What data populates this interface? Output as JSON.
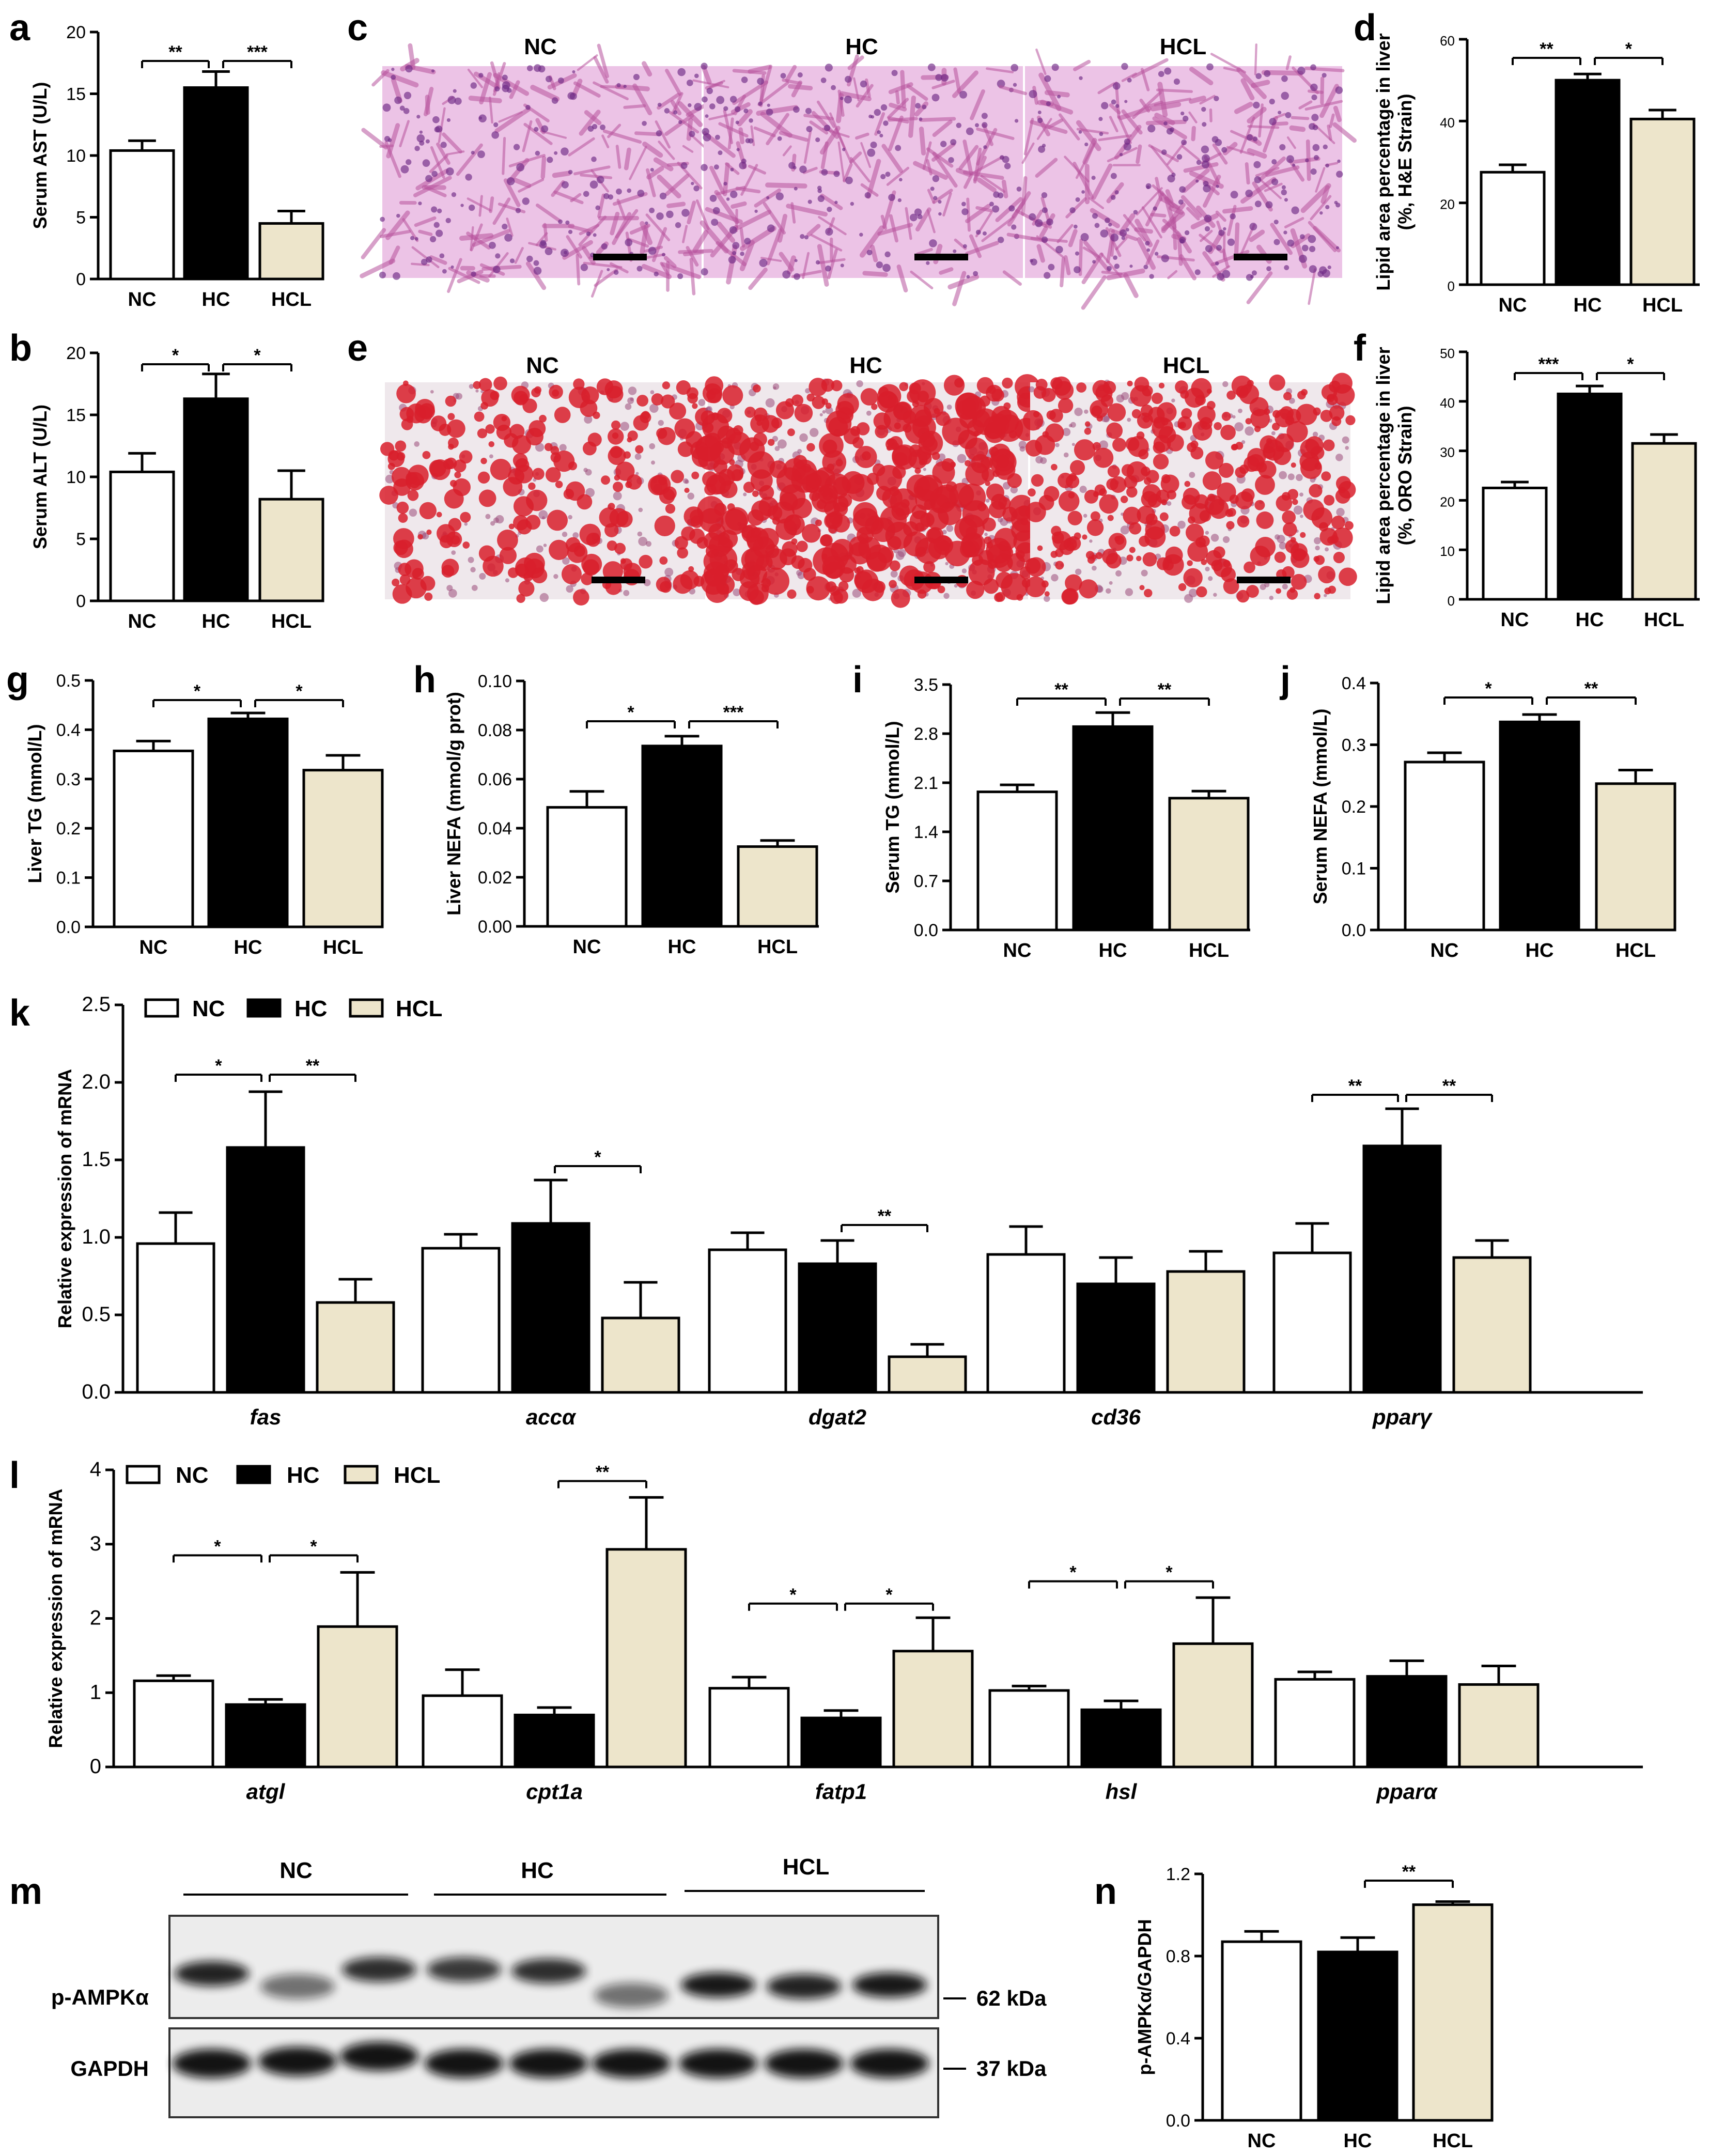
{
  "colors": {
    "NC": "#ffffff",
    "HC": "#000000",
    "HCL": "#ede5cb",
    "he_bg": "#ecc3e6",
    "he_cell": "#b8539d",
    "oro_bg": "#efe8ec",
    "oro_drop": "#d81e2c",
    "oro_cell": "#9a4a7a"
  },
  "chart_data": [
    {
      "id": "a",
      "type": "bar",
      "categories": [
        "NC",
        "HC",
        "HCL"
      ],
      "values": [
        10.4,
        15.5,
        4.5
      ],
      "errors": [
        0.8,
        1.3,
        1.0
      ],
      "ylabel": "Serum AST (U/L)",
      "ylim": [
        0,
        20
      ],
      "ticks": [
        0,
        5,
        10,
        15,
        20
      ],
      "sig": [
        {
          "from": 0,
          "to": 1,
          "label": "**"
        },
        {
          "from": 1,
          "to": 2,
          "label": "***"
        }
      ]
    },
    {
      "id": "b",
      "type": "bar",
      "categories": [
        "NC",
        "HC",
        "HCL"
      ],
      "values": [
        10.4,
        16.3,
        8.2
      ],
      "errors": [
        1.5,
        2.0,
        2.3
      ],
      "ylabel": "Serum ALT (U/L)",
      "ylim": [
        0,
        20
      ],
      "ticks": [
        0,
        5,
        10,
        15,
        20
      ],
      "sig": [
        {
          "from": 0,
          "to": 1,
          "label": "*"
        },
        {
          "from": 1,
          "to": 2,
          "label": "*"
        }
      ]
    },
    {
      "id": "d",
      "type": "bar",
      "categories": [
        "NC",
        "HC",
        "HCL"
      ],
      "values": [
        27.5,
        50.0,
        40.5
      ],
      "errors": [
        1.8,
        1.5,
        2.2
      ],
      "ylabel": "Lipid area percentage in liver",
      "ylabel2": "(%, H&E Strain)",
      "ylim": [
        0,
        60
      ],
      "ticks": [
        0,
        20,
        40,
        60
      ],
      "sig": [
        {
          "from": 0,
          "to": 1,
          "label": "**"
        },
        {
          "from": 1,
          "to": 2,
          "label": "*"
        }
      ]
    },
    {
      "id": "f",
      "type": "bar",
      "categories": [
        "NC",
        "HC",
        "HCL"
      ],
      "values": [
        22.5,
        41.5,
        31.5
      ],
      "errors": [
        1.2,
        1.6,
        1.8
      ],
      "ylabel": "Lipid area percentage in liver",
      "ylabel2": "(%, ORO Strain)",
      "ylim": [
        0,
        50
      ],
      "ticks": [
        0,
        10,
        20,
        30,
        40,
        50
      ],
      "sig": [
        {
          "from": 0,
          "to": 1,
          "label": "***"
        },
        {
          "from": 1,
          "to": 2,
          "label": "*"
        }
      ]
    },
    {
      "id": "g",
      "type": "bar",
      "categories": [
        "NC",
        "HC",
        "HCL"
      ],
      "values": [
        0.357,
        0.422,
        0.318
      ],
      "errors": [
        0.02,
        0.012,
        0.03
      ],
      "ylabel": "Liver TG  (mmol/L)",
      "ylim": [
        0,
        0.5
      ],
      "ticks": [
        "0.0",
        "0.1",
        "0.2",
        "0.3",
        "0.4",
        "0.5"
      ],
      "tickvals": [
        0,
        0.1,
        0.2,
        0.3,
        0.4,
        0.5
      ],
      "sig": [
        {
          "from": 0,
          "to": 1,
          "label": "*"
        },
        {
          "from": 1,
          "to": 2,
          "label": "*"
        }
      ]
    },
    {
      "id": "h",
      "type": "bar",
      "categories": [
        "NC",
        "HC",
        "HCL"
      ],
      "values": [
        0.0485,
        0.0735,
        0.0325
      ],
      "errors": [
        0.0065,
        0.004,
        0.0025
      ],
      "ylabel": "Liver NEFA (mmol/g prot)",
      "ylim": [
        0,
        0.1
      ],
      "ticks": [
        "0.00",
        "0.02",
        "0.04",
        "0.06",
        "0.08",
        "0.10"
      ],
      "tickvals": [
        0,
        0.02,
        0.04,
        0.06,
        0.08,
        0.1
      ],
      "sig": [
        {
          "from": 0,
          "to": 1,
          "label": "*"
        },
        {
          "from": 1,
          "to": 2,
          "label": "***"
        }
      ]
    },
    {
      "id": "i",
      "type": "bar",
      "categories": [
        "NC",
        "HC",
        "HCL"
      ],
      "values": [
        1.97,
        2.9,
        1.88
      ],
      "errors": [
        0.1,
        0.2,
        0.1
      ],
      "ylabel": "Serum TG  (mmol/L)",
      "ylim": [
        0,
        3.5
      ],
      "ticks": [
        "0.0",
        "0.7",
        "1.4",
        "2.1",
        "2.8",
        "3.5"
      ],
      "tickvals": [
        0,
        0.7,
        1.4,
        2.1,
        2.8,
        3.5
      ],
      "sig": [
        {
          "from": 0,
          "to": 1,
          "label": "**"
        },
        {
          "from": 1,
          "to": 2,
          "label": "**"
        }
      ]
    },
    {
      "id": "j",
      "type": "bar",
      "categories": [
        "NC",
        "HC",
        "HCL"
      ],
      "values": [
        0.272,
        0.337,
        0.237
      ],
      "errors": [
        0.015,
        0.012,
        0.022
      ],
      "ylabel": "Serum NEFA  (mmol/L)",
      "ylim": [
        0,
        0.4
      ],
      "ticks": [
        "0.0",
        "0.1",
        "0.2",
        "0.3",
        "0.4"
      ],
      "tickvals": [
        0,
        0.1,
        0.2,
        0.3,
        0.4
      ],
      "sig": [
        {
          "from": 0,
          "to": 1,
          "label": "*"
        },
        {
          "from": 1,
          "to": 2,
          "label": "**"
        }
      ]
    },
    {
      "id": "k",
      "type": "bar",
      "categories": [
        "fas",
        "accα",
        "dgat2",
        "cd36",
        "pparγ"
      ],
      "series": [
        {
          "name": "NC",
          "values": [
            0.96,
            0.93,
            0.92,
            0.89,
            0.9
          ],
          "errors": [
            0.2,
            0.09,
            0.11,
            0.18,
            0.19
          ]
        },
        {
          "name": "HC",
          "values": [
            1.58,
            1.09,
            0.83,
            0.7,
            1.59
          ],
          "errors": [
            0.36,
            0.28,
            0.15,
            0.17,
            0.24
          ]
        },
        {
          "name": "HCL",
          "values": [
            0.58,
            0.48,
            0.23,
            0.78,
            0.87
          ],
          "errors": [
            0.15,
            0.23,
            0.08,
            0.13,
            0.11
          ]
        }
      ],
      "ylabel": "Relative expression of mRNA",
      "ylim": [
        0,
        2.5
      ],
      "ticks": [
        "0.0",
        "0.5",
        "1.0",
        "1.5",
        "2.0",
        "2.5"
      ],
      "tickvals": [
        0,
        0.5,
        1,
        1.5,
        2,
        2.5
      ],
      "sig": [
        {
          "group": 0,
          "from": 0,
          "to": 1,
          "label": "*",
          "level": 2.05
        },
        {
          "group": 0,
          "from": 1,
          "to": 2,
          "label": "**",
          "level": 2.05
        },
        {
          "group": 1,
          "from": 1,
          "to": 2,
          "label": "*",
          "level": 1.46
        },
        {
          "group": 2,
          "from": 1,
          "to": 2,
          "label": "**",
          "level": 1.08
        },
        {
          "group": 4,
          "from": 0,
          "to": 1,
          "label": "**",
          "level": 1.92
        },
        {
          "group": 4,
          "from": 1,
          "to": 2,
          "label": "**",
          "level": 1.92
        }
      ]
    },
    {
      "id": "l",
      "type": "bar",
      "categories": [
        "atgl",
        "cpt1a",
        "fatp1",
        "hsl",
        "pparα"
      ],
      "series": [
        {
          "name": "NC",
          "values": [
            1.16,
            0.96,
            1.06,
            1.03,
            1.18
          ],
          "errors": [
            0.07,
            0.35,
            0.15,
            0.06,
            0.1
          ]
        },
        {
          "name": "HC",
          "values": [
            0.84,
            0.7,
            0.66,
            0.77,
            1.22
          ],
          "errors": [
            0.07,
            0.1,
            0.1,
            0.12,
            0.21
          ]
        },
        {
          "name": "HCL",
          "values": [
            1.89,
            2.93,
            1.56,
            1.66,
            1.11
          ],
          "errors": [
            0.73,
            0.7,
            0.45,
            0.62,
            0.25
          ]
        }
      ],
      "ylabel": "Relative expression of mRNA",
      "ylim": [
        0,
        4
      ],
      "ticks": [
        "0",
        "1",
        "2",
        "3",
        "4"
      ],
      "tickvals": [
        0,
        1,
        2,
        3,
        4
      ],
      "sig": [
        {
          "group": 0,
          "from": 0,
          "to": 1,
          "label": "*",
          "level": 2.85
        },
        {
          "group": 0,
          "from": 1,
          "to": 2,
          "label": "*",
          "level": 2.85
        },
        {
          "group": 1,
          "from": 1,
          "to": 2,
          "label": "**",
          "level": 3.85
        },
        {
          "group": 2,
          "from": 0,
          "to": 1,
          "label": "*",
          "level": 2.2
        },
        {
          "group": 2,
          "from": 1,
          "to": 2,
          "label": "*",
          "level": 2.2
        },
        {
          "group": 3,
          "from": 0,
          "to": 1,
          "label": "*",
          "level": 2.5
        },
        {
          "group": 3,
          "from": 1,
          "to": 2,
          "label": "*",
          "level": 2.5
        }
      ]
    },
    {
      "id": "n",
      "type": "bar",
      "categories": [
        "NC",
        "HC",
        "HCL"
      ],
      "values": [
        0.87,
        0.82,
        1.05
      ],
      "errors": [
        0.05,
        0.07,
        0.015
      ],
      "ylabel": "p-AMPKα/GAPDH",
      "ylim": [
        0,
        1.2
      ],
      "ticks": [
        "0.0",
        "0.4",
        "0.8",
        "1.2"
      ],
      "tickvals": [
        0,
        0.4,
        0.8,
        1.2
      ],
      "sig": [
        {
          "from": 1,
          "to": 2,
          "label": "**"
        }
      ]
    }
  ],
  "panels": {
    "a": "a",
    "b": "b",
    "c": "c",
    "d": "d",
    "e": "e",
    "f": "f",
    "g": "g",
    "h": "h",
    "i": "i",
    "j": "j",
    "k": "k",
    "l": "l",
    "m": "m",
    "n": "n"
  },
  "histology": {
    "c_labels": [
      "NC",
      "HC",
      "HCL"
    ],
    "e_labels": [
      "NC",
      "HC",
      "HCL"
    ]
  },
  "legend": [
    "NC",
    "HC",
    "HCL"
  ],
  "blot": {
    "groups": [
      "NC",
      "HC",
      "HCL"
    ],
    "rows": [
      "p-AMPKα",
      "GAPDH"
    ],
    "sizes": [
      "62 kDa",
      "37 kDa"
    ]
  }
}
